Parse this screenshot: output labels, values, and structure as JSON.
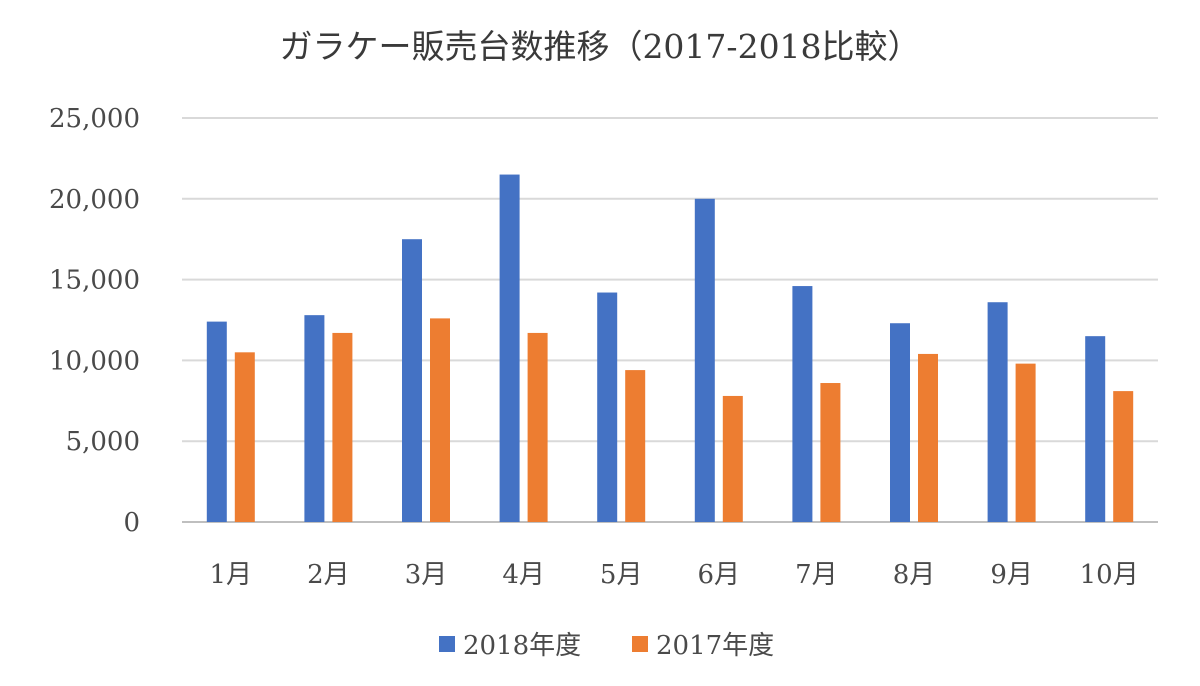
{
  "chart_data": {
    "type": "bar",
    "title": "ガラケー販売台数推移（2017-2018比較）",
    "categories": [
      "1月",
      "2月",
      "3月",
      "4月",
      "5月",
      "6月",
      "7月",
      "8月",
      "9月",
      "10月"
    ],
    "series": [
      {
        "name": "2018年度",
        "color": "#4472C4",
        "values": [
          12400,
          12800,
          17500,
          21500,
          14200,
          20000,
          14600,
          12300,
          13600,
          11500
        ]
      },
      {
        "name": "2017年度",
        "color": "#ED7D31",
        "values": [
          10500,
          11700,
          12600,
          11700,
          9400,
          7800,
          8600,
          10400,
          9800,
          8100
        ]
      }
    ],
    "yticks": [
      "0",
      "5,000",
      "10,000",
      "15,000",
      "20,000",
      "25,000"
    ],
    "ylim": [
      0,
      25000
    ],
    "grid": true,
    "legend_position": "bottom"
  }
}
